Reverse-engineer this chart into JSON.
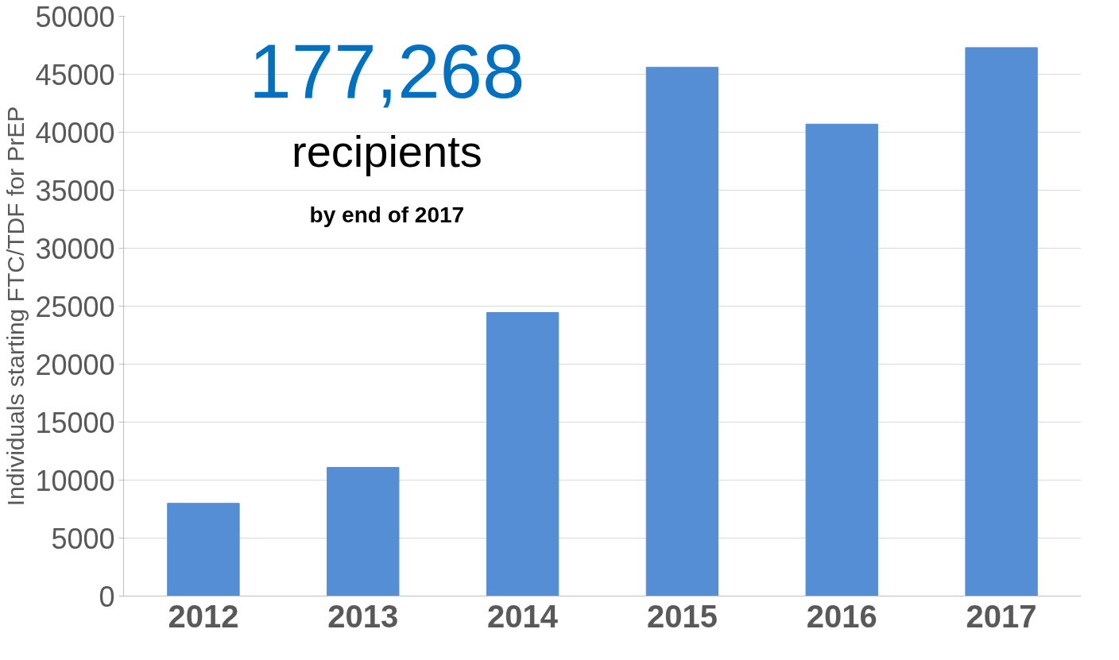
{
  "chart_data": {
    "type": "bar",
    "categories": [
      "2012",
      "2013",
      "2014",
      "2015",
      "2016",
      "2017"
    ],
    "values": [
      8000,
      11100,
      24450,
      45600,
      40700,
      47300
    ],
    "color": "#558ed5",
    "ylabel": "Individuals starting FTC/TDF for PrEP",
    "ylim": [
      0,
      50000
    ],
    "yticks": [
      0,
      5000,
      10000,
      15000,
      20000,
      25000,
      30000,
      35000,
      40000,
      45000,
      50000
    ],
    "grid": "y",
    "annotations": [
      "177,268",
      "recipients",
      "by end of 2017"
    ]
  }
}
